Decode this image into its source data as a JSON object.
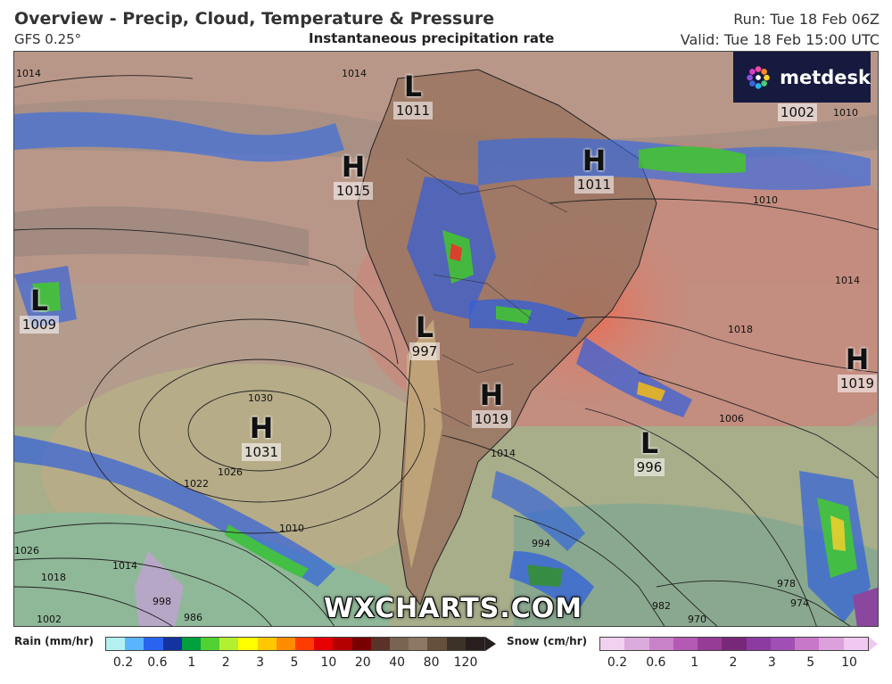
{
  "header": {
    "title": "Overview - Precip, Cloud, Temperature & Pressure",
    "model": "GFS 0.25°",
    "subtitle": "Instantaneous precipitation rate",
    "run": "Run: Tue 18 Feb 06Z",
    "valid": "Valid: Tue 18 Feb 15:00 UTC"
  },
  "logo": {
    "text": "metdesk",
    "icon": "pinwheel-icon"
  },
  "watermark": "WXCHARTS.COM",
  "pressure_centers": [
    {
      "type": "L",
      "value": "1011"
    },
    {
      "type": "H",
      "value": "1015"
    },
    {
      "type": "H",
      "value": "1011"
    },
    {
      "type": "L",
      "value": "1009"
    },
    {
      "type": "L",
      "value": "997"
    },
    {
      "type": "H",
      "value": "1019"
    },
    {
      "type": "H",
      "value": "1031"
    },
    {
      "type": "L",
      "value": "996"
    },
    {
      "type": "H",
      "value": "1019"
    }
  ],
  "top_right_value": "1002",
  "isobar_labels": [
    "1014",
    "1014",
    "1010",
    "1014",
    "1018",
    "1006",
    "1014",
    "1030",
    "1026",
    "1022",
    "1010",
    "1026",
    "1018",
    "1014",
    "998",
    "986",
    "994",
    "978",
    "974",
    "970",
    "982",
    "1002",
    "1010"
  ],
  "legend": {
    "rain": {
      "title": "Rain (mm/hr)",
      "ticks": [
        "0.2",
        "0.6",
        "1",
        "2",
        "3",
        "5",
        "10",
        "20",
        "40",
        "80",
        "120"
      ],
      "colors": [
        "#b4f0f0",
        "#5ab4ff",
        "#2864f0",
        "#1432a0",
        "#00a03c",
        "#50d232",
        "#b4f032",
        "#ffff00",
        "#ffc800",
        "#ff8c00",
        "#ff3c00",
        "#e60000",
        "#b40000",
        "#780000",
        "#5a3228",
        "#786450",
        "#8c7864",
        "#64503c",
        "#3c3228",
        "#281e1e"
      ]
    },
    "snow": {
      "title": "Snow (cm/hr)",
      "ticks": [
        "0.2",
        "0.6",
        "1",
        "2",
        "3",
        "5",
        "10"
      ],
      "colors": [
        "#f0d2f0",
        "#dcaadc",
        "#c882c8",
        "#b45ab4",
        "#963c96",
        "#782878",
        "#8c3ca0",
        "#a050b4",
        "#c878c8",
        "#dca0dc",
        "#f0c8f0"
      ]
    }
  }
}
